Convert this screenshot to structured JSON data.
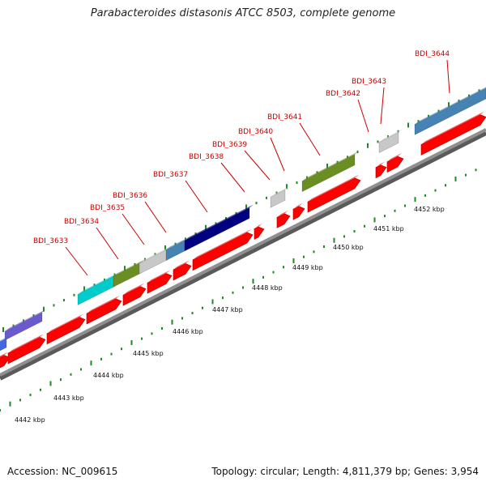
{
  "title": "Parabacteroides distasonis ATCC 8503, complete genome",
  "footer": {
    "accession": "Accession: NC_009615",
    "summary": "Topology: circular; Length: 4,811,379 bp; Genes: 3,954"
  },
  "colors": {
    "cds": "#ff0000",
    "backbone": "#8f8f8f",
    "tick": "#1f8a1f",
    "label": "#cc0000"
  },
  "scale_labels": [
    "4442 kbp",
    "4443 kbp",
    "4444 kbp",
    "4445 kbp",
    "4446 kbp",
    "4447 kbp",
    "4448 kbp",
    "4449 kbp",
    "4450 kbp",
    "4451 kbp",
    "4452 kbp"
  ],
  "genes": [
    {
      "name": "BDI_3633",
      "color": "#00cccc"
    },
    {
      "name": "BDI_3634",
      "color": "#6b8e23"
    },
    {
      "name": "BDI_3635",
      "color": "#c8c8c8"
    },
    {
      "name": "BDI_3636",
      "color": "#4682b4"
    },
    {
      "name": "BDI_3637",
      "color": "#000080"
    },
    {
      "name": "BDI_3638",
      "color": "#ff0000"
    },
    {
      "name": "BDI_3639",
      "color": "#c8c8c8"
    },
    {
      "name": "BDI_3640",
      "color": "#ff0000"
    },
    {
      "name": "BDI_3641",
      "color": "#6b8e23"
    },
    {
      "name": "BDI_3642",
      "color": "#ff0000"
    },
    {
      "name": "BDI_3643",
      "color": "#c8c8c8"
    },
    {
      "name": "BDI_3644",
      "color": "#4682b4"
    }
  ],
  "unlabeled_features": [
    {
      "name": "left-purple-feature",
      "color": "#6a5acd"
    },
    {
      "name": "left-blue-feature",
      "color": "#4169e1"
    }
  ]
}
